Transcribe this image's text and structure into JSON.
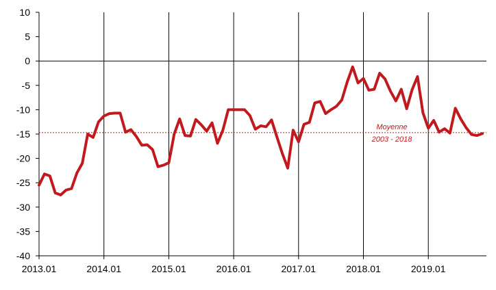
{
  "chart_data": {
    "type": "line",
    "title": "",
    "xlabel": "",
    "ylabel": "",
    "ylim": [
      -40,
      10
    ],
    "yticks": [
      10,
      5,
      0,
      -5,
      -10,
      -15,
      -20,
      -25,
      -30,
      -35,
      -40
    ],
    "x_tick_labels": [
      "2013.01",
      "2014.01",
      "2015.01",
      "2016.01",
      "2017.01",
      "2018.01",
      "2019.01"
    ],
    "vertical_gridlines_at": [
      "2014.01",
      "2015.01",
      "2016.01",
      "2017.01",
      "2018.01",
      "2019.01"
    ],
    "grid": "vertical",
    "line_color": "#c0191e",
    "reference_line": {
      "value": -14.7,
      "label_line1": "Moyenne",
      "label_line2": "2003 - 2018",
      "color": "#c0191e"
    },
    "series": [
      {
        "values": [
          -25.5,
          -23.2,
          -23.6,
          -27.1,
          -27.5,
          -26.5,
          -26.2,
          -23.0,
          -21.0,
          -15.0,
          -15.7,
          -12.5,
          -11.3,
          -10.8,
          -10.7,
          -10.7,
          -14.6,
          -14.1,
          -15.5,
          -17.3,
          -17.2,
          -18.2,
          -21.7,
          -21.4,
          -20.9,
          -15.0,
          -11.9,
          -15.3,
          -15.4,
          -12.0,
          -13.1,
          -14.4,
          -12.7,
          -16.9,
          -14.2,
          -10.0,
          -10.0,
          -10.0,
          -10.0,
          -11.2,
          -14.0,
          -13.3,
          -13.5,
          -12.1,
          -15.6,
          -19.0,
          -22.0,
          -14.2,
          -16.6,
          -13.0,
          -12.6,
          -8.6,
          -8.3,
          -10.8,
          -10.0,
          -9.3,
          -8.0,
          -4.3,
          -1.2,
          -4.5,
          -3.6,
          -6.0,
          -5.8,
          -2.5,
          -3.7,
          -6.2,
          -8.2,
          -5.8,
          -9.8,
          -5.9,
          -3.2,
          -10.6,
          -13.8,
          -12.2,
          -14.6,
          -13.9,
          -14.8,
          -9.7,
          -11.9,
          -13.7,
          -15.1,
          -15.3,
          -14.9
        ]
      }
    ]
  }
}
